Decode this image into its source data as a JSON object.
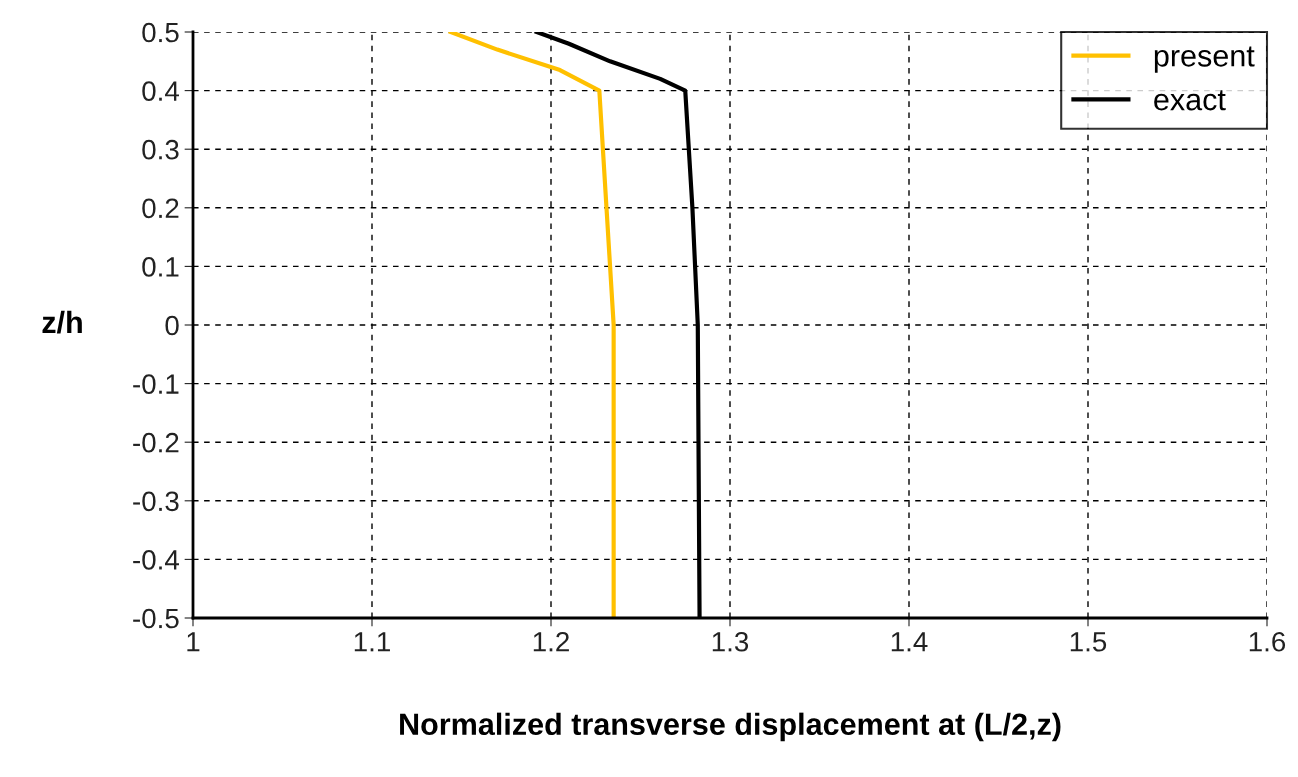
{
  "chart_data": {
    "type": "line",
    "xlabel": "Normalized transverse displacement at (L/2,z)",
    "ylabel": "z/h",
    "xlim": [
      1,
      1.6
    ],
    "xticks": [
      1,
      1.1,
      1.2,
      1.3,
      1.4,
      1.5,
      1.6
    ],
    "ylim": [
      -0.5,
      0.5
    ],
    "yticks": [
      -0.5,
      -0.4,
      -0.3,
      -0.2,
      -0.1,
      0,
      0.1,
      0.2,
      0.3,
      0.4,
      0.5
    ],
    "grid": true,
    "legend": "top right",
    "line_style": "solid",
    "marker": "none",
    "series": [
      {
        "name": "present",
        "color": "#ffc000",
        "x": [
          1.144,
          1.17,
          1.205,
          1.227,
          1.231,
          1.235,
          1.235
        ],
        "values": [
          0.5,
          0.47,
          0.435,
          0.4,
          0.2,
          0,
          -0.5
        ]
      },
      {
        "name": "exact",
        "color": "#000000",
        "x": [
          1.192,
          1.21,
          1.233,
          1.261,
          1.275,
          1.279,
          1.282,
          1.283
        ],
        "values": [
          0.5,
          0.48,
          0.45,
          0.42,
          0.4,
          0.2,
          0,
          -0.5
        ]
      }
    ]
  }
}
